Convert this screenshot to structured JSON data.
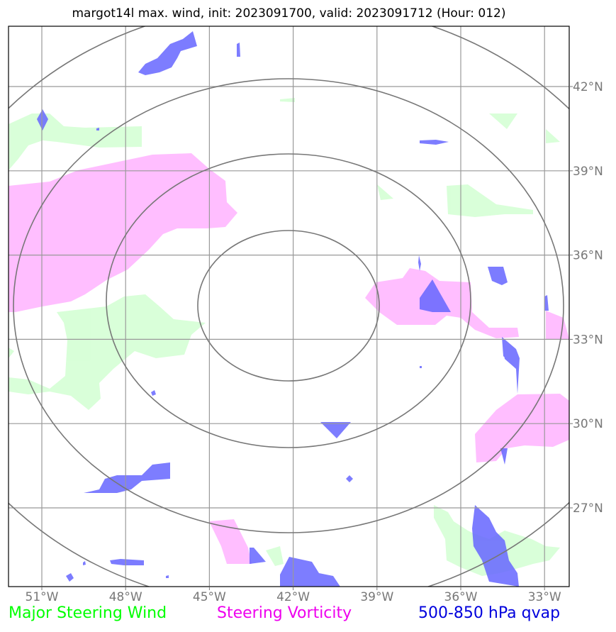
{
  "title": "margot14l max. wind, init: 2023091700, valid: 2023091712 (Hour: 012)",
  "map": {
    "lon_ticks": [
      "51°W",
      "48°W",
      "45°W",
      "42°W",
      "39°W",
      "36°W",
      "33°W"
    ],
    "lat_ticks": [
      "42°N",
      "39°N",
      "36°N",
      "33°N",
      "30°N",
      "27°N"
    ],
    "lon_values": [
      -51,
      -48,
      -45,
      -42,
      -39,
      -36,
      -33
    ],
    "lat_values": [
      42,
      39,
      36,
      33,
      30,
      27
    ],
    "gridline_color": "#999999",
    "ring_color": "#777777",
    "tick_color": "#777777"
  },
  "layers": {
    "steering_wind_color": "#ccffcc",
    "steering_vorticity_color": "#ffb3ff",
    "qvap_color": "#6666ff"
  },
  "legend": {
    "items": [
      {
        "label": "Major Steering Wind",
        "color": "#00ff00"
      },
      {
        "label": "Steering Vorticity",
        "color": "#ee00ee"
      },
      {
        "label": "500-850 hPa qvap",
        "color": "#0000dd"
      }
    ]
  }
}
